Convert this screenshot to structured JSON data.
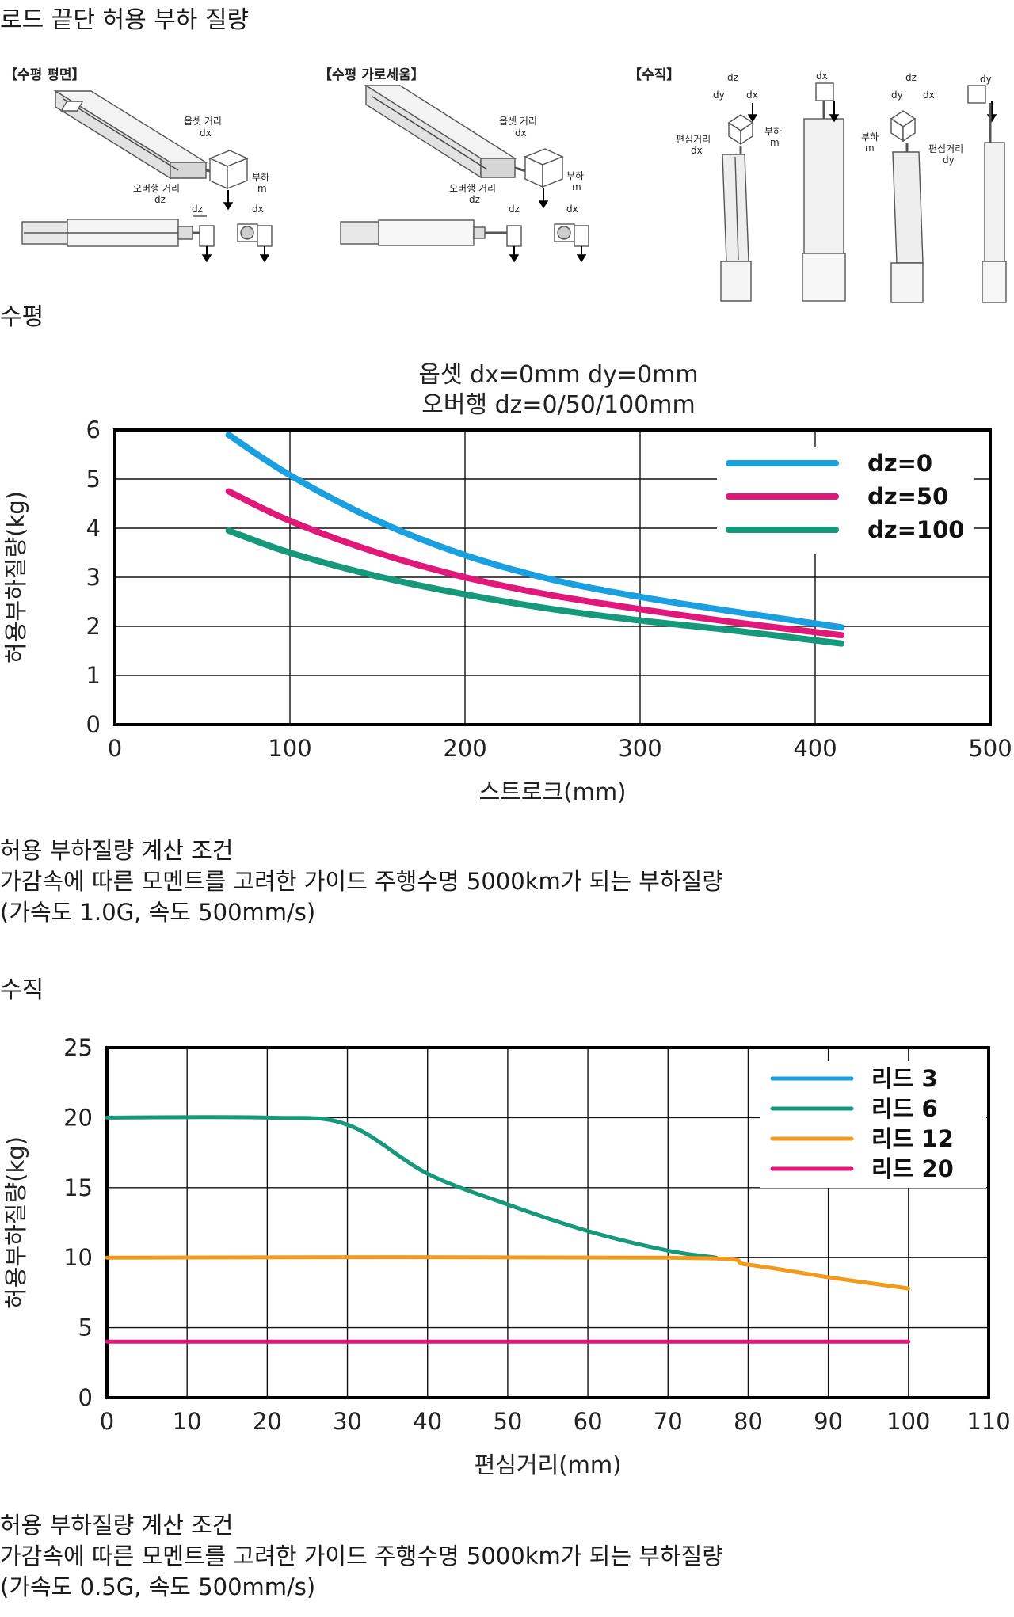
{
  "page_title": "로드 끝단 허용 부하 질량",
  "diagrams": {
    "horizontal_flat": {
      "title": "【수평 평면】",
      "labels": {
        "offset": "옵셋 거리",
        "offset_axis": "dx",
        "load": "부하",
        "load_sym": "m",
        "overhang": "오버행 거리",
        "overhang_axis": "dz",
        "dz": "dz",
        "dx": "dx"
      }
    },
    "horizontal_side": {
      "title": "【수평 가로세움】",
      "labels": {
        "offset": "옵셋 거리",
        "offset_axis": "dx",
        "load": "부하",
        "load_sym": "m",
        "overhang": "오버행 거리",
        "overhang_axis": "dz",
        "dz": "dz",
        "dx": "dx"
      }
    },
    "vertical": {
      "title": "【수직】",
      "labels": {
        "dz": "dz",
        "dy": "dy",
        "dx": "dx",
        "ecc1": "편심거리",
        "ecc1_axis": "dx",
        "load": "부하",
        "load_sym": "m",
        "ecc2": "편심거리",
        "ecc2_axis": "dy"
      }
    }
  },
  "section_horizontal": {
    "heading": "수평",
    "conditions": [
      "허용 부하질량 계산 조건",
      "가감속에 따른 모멘트를 고려한 가이드 주행수명 5000km가 되는 부하질량",
      "(가속도 1.0G, 속도 500mm/s)"
    ]
  },
  "section_vertical": {
    "heading": "수직",
    "conditions": [
      "허용 부하질량 계산 조건",
      "가감속에 따른 모멘트를 고려한 가이드 주행수명 5000km가 되는 부하질량",
      "(가속도 0.5G, 속도 500mm/s)"
    ]
  },
  "chart_data": [
    {
      "type": "line",
      "title": "옵셋 dx=0mm dy=0mm",
      "subtitle": "오버행 dz=0/50/100mm",
      "xlabel": "스트로크(mm)",
      "ylabel": "허용부하질량(kg)",
      "xlim": [
        0,
        500
      ],
      "ylim": [
        0,
        6
      ],
      "xticks": [
        0,
        100,
        200,
        300,
        400,
        500
      ],
      "yticks": [
        0,
        1,
        2,
        3,
        4,
        5,
        6
      ],
      "grid": true,
      "legend": "top-right",
      "series": [
        {
          "name": "dz=0",
          "color": "#1aa0e0",
          "x": [
            65,
            100,
            150,
            200,
            250,
            300,
            350,
            415
          ],
          "y": [
            5.9,
            5.08,
            4.15,
            3.45,
            2.95,
            2.6,
            2.32,
            1.98
          ]
        },
        {
          "name": "dz=50",
          "color": "#e0187a",
          "x": [
            65,
            100,
            150,
            200,
            250,
            300,
            350,
            415
          ],
          "y": [
            4.75,
            4.15,
            3.5,
            3.0,
            2.63,
            2.35,
            2.1,
            1.82
          ]
        },
        {
          "name": "dz=100",
          "color": "#16997a",
          "x": [
            65,
            100,
            150,
            200,
            250,
            300,
            350,
            415
          ],
          "y": [
            3.95,
            3.5,
            3.02,
            2.65,
            2.35,
            2.12,
            1.93,
            1.65
          ]
        }
      ]
    },
    {
      "type": "line",
      "xlabel": "편심거리(mm)",
      "ylabel": "허용부하질량(kg)",
      "xlim": [
        0,
        110
      ],
      "ylim": [
        0,
        25
      ],
      "xticks": [
        0,
        10,
        20,
        30,
        40,
        50,
        60,
        70,
        80,
        90,
        100,
        110
      ],
      "yticks": [
        0,
        5,
        10,
        15,
        20,
        25
      ],
      "grid": true,
      "legend": "top-right",
      "series": [
        {
          "name": "리드 3",
          "color": "#1aa0e0",
          "x": [],
          "y": []
        },
        {
          "name": "리드 6",
          "color": "#16997a",
          "x": [
            0,
            20,
            30,
            40,
            50,
            60,
            70,
            76
          ],
          "y": [
            20,
            20,
            19.5,
            16,
            13.8,
            11.9,
            10.5,
            10
          ]
        },
        {
          "name": "리드 12",
          "color": "#f29a1c",
          "x": [
            0,
            70,
            80,
            90,
            100
          ],
          "y": [
            10,
            10,
            9.5,
            8.6,
            7.8
          ]
        },
        {
          "name": "리드 20",
          "color": "#e0187a",
          "x": [
            0,
            100
          ],
          "y": [
            4,
            4
          ]
        }
      ]
    }
  ]
}
